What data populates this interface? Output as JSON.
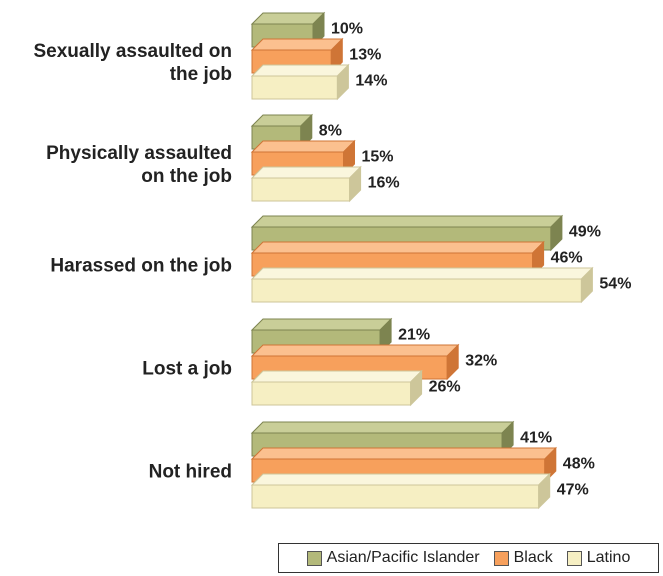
{
  "chart_data": {
    "type": "bar",
    "orientation": "horizontal",
    "categories": [
      [
        "Sexually assaulted on",
        "the job"
      ],
      [
        "Physically assaulted",
        "on the job"
      ],
      [
        "Harassed on the job"
      ],
      [
        "Lost a job"
      ],
      [
        "Not hired"
      ]
    ],
    "series": [
      {
        "name": "Asian/Pacific Islander",
        "values": [
          10,
          8,
          49,
          21,
          41
        ],
        "color": "#b3b97a",
        "top_color": "#c9ce98",
        "side_color": "#7d8450"
      },
      {
        "name": "Black",
        "values": [
          13,
          15,
          46,
          32,
          48
        ],
        "color": "#f7a05c",
        "top_color": "#fbc08f",
        "side_color": "#cf7536"
      },
      {
        "name": "Latino",
        "values": [
          14,
          16,
          54,
          26,
          47
        ],
        "color": "#f6efc3",
        "top_color": "#faf6dd",
        "side_color": "#cdc69a"
      }
    ],
    "value_suffix": "%",
    "xlim": [
      0,
      60
    ],
    "grid": false,
    "legend": "bottom-right",
    "title": "",
    "xlabel": "",
    "ylabel": ""
  }
}
